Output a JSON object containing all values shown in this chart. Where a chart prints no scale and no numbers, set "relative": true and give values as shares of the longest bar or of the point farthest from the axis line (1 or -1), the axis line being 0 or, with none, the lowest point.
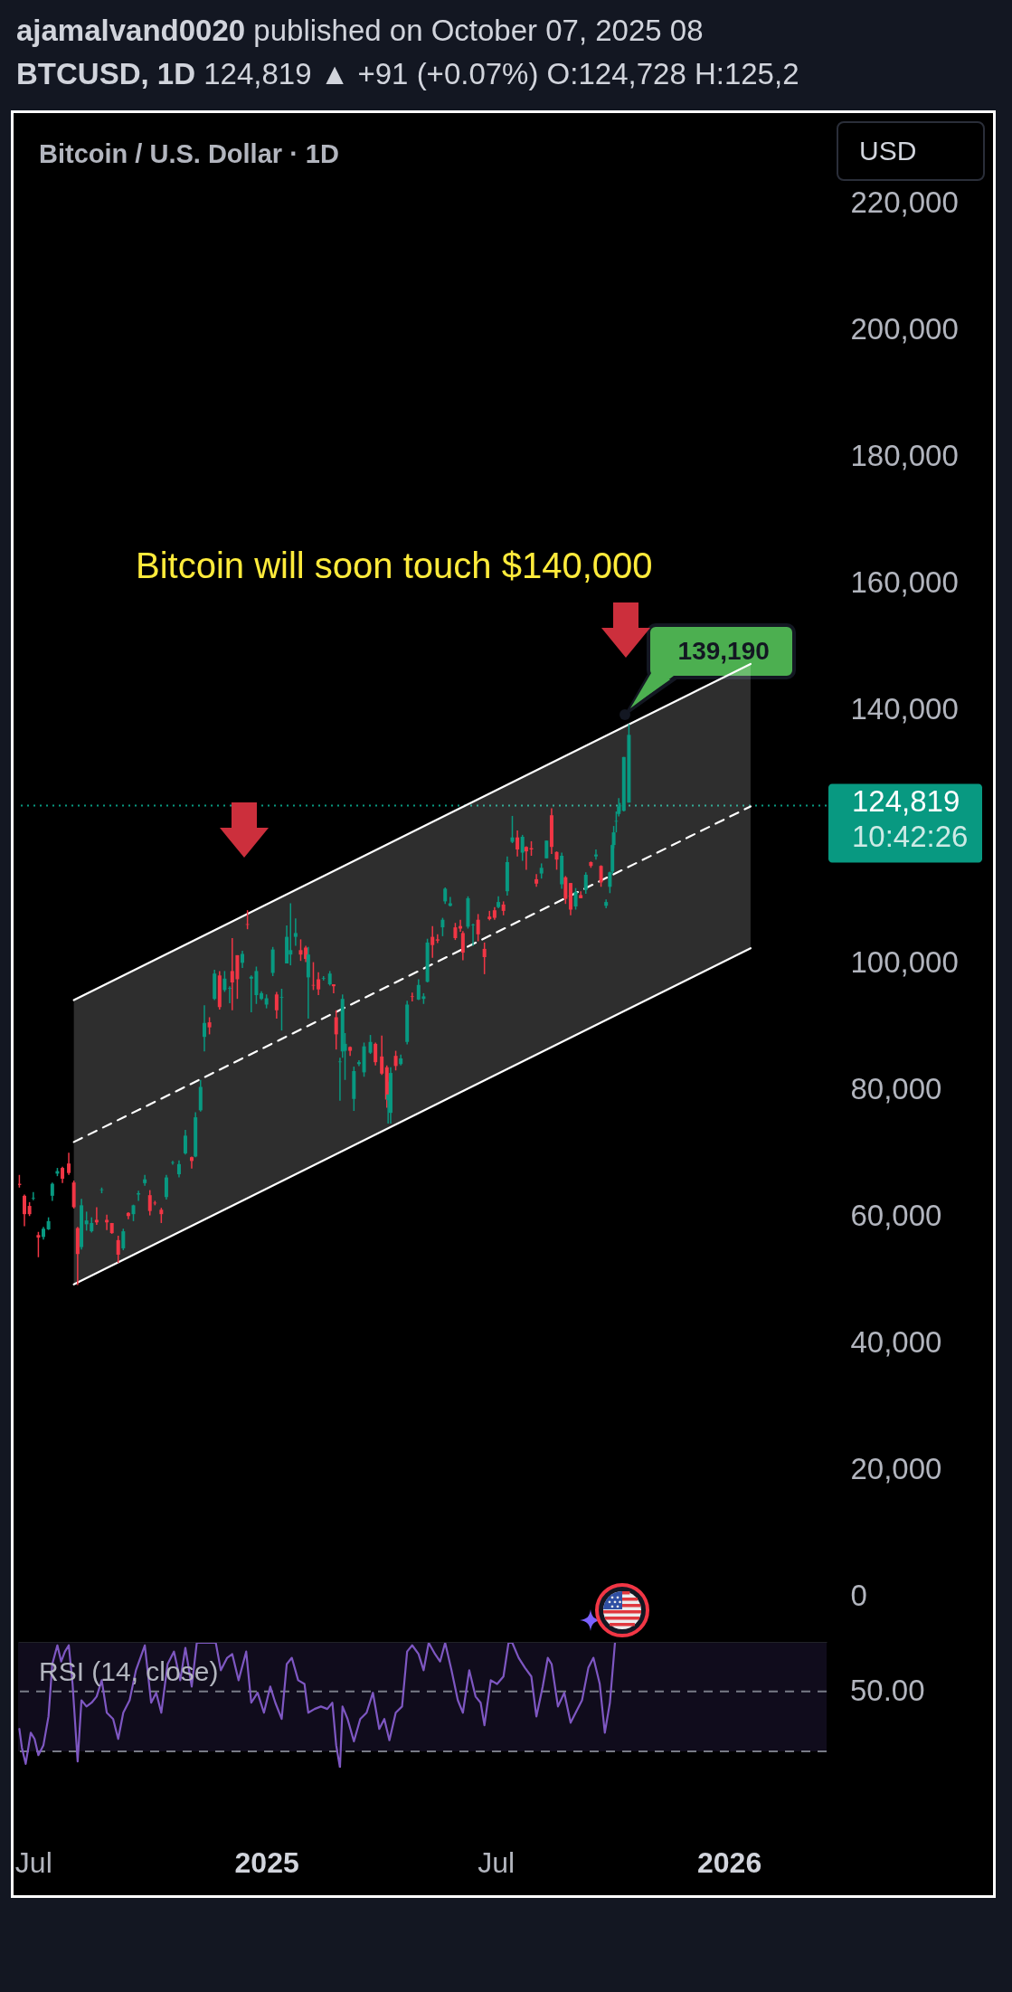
{
  "chart_data": [
    {
      "type": "candlestick",
      "title": "Bitcoin / U.S. Dollar · 1D",
      "subtitle": "BTCUSD, 1D 124,819 ▲ +91 (+0.07%) O:124,728 H:125,2",
      "ylabel": "USD",
      "annotations": [
        "ajamalvand0020 published on October 07, 2025 08",
        "Bitcoin will soon touch $140,000",
        {
          "text": "139,190",
          "x": "2025-10-11",
          "y": 139190
        },
        "10:42:26"
      ],
      "x": [
        "2024-06-20",
        "2024-06-24",
        "2024-06-28",
        "2024-07-01",
        "2024-07-05",
        "2024-07-09",
        "2024-07-13",
        "2024-07-16",
        "2024-07-20",
        "2024-07-24",
        "2024-07-29",
        "2024-08-02",
        "2024-08-05",
        "2024-08-08",
        "2024-08-12",
        "2024-08-16",
        "2024-08-20",
        "2024-08-24",
        "2024-08-28",
        "2024-09-01",
        "2024-09-06",
        "2024-09-10",
        "2024-09-14",
        "2024-09-18",
        "2024-09-22",
        "2024-09-27",
        "2024-10-01",
        "2024-10-05",
        "2024-10-10",
        "2024-10-14",
        "2024-10-19",
        "2024-10-24",
        "2024-10-29",
        "2024-11-03",
        "2024-11-06",
        "2024-11-10",
        "2024-11-13",
        "2024-11-17",
        "2024-11-21",
        "2024-11-25",
        "2024-11-29",
        "2024-12-03",
        "2024-12-05",
        "2024-12-09",
        "2024-12-13",
        "2024-12-17",
        "2024-12-20",
        "2024-12-24",
        "2024-12-28",
        "2025-01-01",
        "2025-01-06",
        "2025-01-09",
        "2025-01-13",
        "2025-01-17",
        "2025-01-20",
        "2025-01-24",
        "2025-01-28",
        "2025-02-01",
        "2025-02-03",
        "2025-02-07",
        "2025-02-11",
        "2025-02-15",
        "2025-02-20",
        "2025-02-23",
        "2025-02-25",
        "2025-02-28",
        "2025-03-02",
        "2025-03-04",
        "2025-03-08",
        "2025-03-11",
        "2025-03-15",
        "2025-03-19",
        "2025-03-24",
        "2025-03-28",
        "2025-04-02",
        "2025-04-06",
        "2025-04-07",
        "2025-04-09",
        "2025-04-13",
        "2025-04-17",
        "2025-04-22",
        "2025-04-26",
        "2025-05-01",
        "2025-05-05",
        "2025-05-08",
        "2025-05-12",
        "2025-05-16",
        "2025-05-20",
        "2025-05-22",
        "2025-05-26",
        "2025-05-30",
        "2025-06-03",
        "2025-06-05",
        "2025-06-09",
        "2025-06-13",
        "2025-06-17",
        "2025-06-22",
        "2025-06-26",
        "2025-06-30",
        "2025-07-03",
        "2025-07-07",
        "2025-07-10",
        "2025-07-14",
        "2025-07-18",
        "2025-07-22",
        "2025-07-25",
        "2025-07-29",
        "2025-08-02",
        "2025-08-06",
        "2025-08-10",
        "2025-08-14",
        "2025-08-18",
        "2025-08-22",
        "2025-08-25",
        "2025-08-29",
        "2025-09-02",
        "2025-09-06",
        "2025-09-10",
        "2025-09-14",
        "2025-09-18",
        "2025-09-22",
        "2025-09-26",
        "2025-09-29",
        "2025-10-01",
        "2025-10-02",
        "2025-10-04",
        "2025-10-06",
        "2025-10-07",
        "2025-10-10",
        "2025-10-14"
      ],
      "ohlc": [
        [
          65100,
          66500,
          64500,
          64900
        ],
        [
          63200,
          63400,
          58400,
          60300
        ],
        [
          61600,
          62200,
          60000,
          60300
        ],
        [
          62800,
          63800,
          62500,
          62900
        ],
        [
          57000,
          57500,
          53500,
          56600
        ],
        [
          56700,
          58300,
          56300,
          58000
        ],
        [
          57900,
          59800,
          57800,
          59200
        ],
        [
          63200,
          65300,
          62400,
          65100
        ],
        [
          66700,
          67600,
          66300,
          67100
        ],
        [
          67600,
          67800,
          65200,
          65900
        ],
        [
          68300,
          70000,
          66500,
          66800
        ],
        [
          65300,
          65600,
          61200,
          61400
        ],
        [
          58100,
          58300,
          49100,
          54000
        ],
        [
          55100,
          62700,
          54700,
          61700
        ],
        [
          58700,
          60700,
          57700,
          59300
        ],
        [
          57600,
          59800,
          57400,
          58900
        ],
        [
          59400,
          61400,
          58600,
          59000
        ],
        [
          64100,
          64500,
          63600,
          64200
        ],
        [
          59400,
          60200,
          57800,
          59000
        ],
        [
          58900,
          58900,
          57200,
          57300
        ],
        [
          56200,
          56900,
          52600,
          53900
        ],
        [
          54900,
          58000,
          54600,
          57600
        ],
        [
          60500,
          60600,
          59500,
          60000
        ],
        [
          60300,
          61800,
          59200,
          61700
        ],
        [
          63400,
          64000,
          62400,
          63600
        ],
        [
          65200,
          66500,
          64800,
          65800
        ],
        [
          63300,
          64100,
          60100,
          60800
        ],
        [
          62100,
          62400,
          61700,
          62000
        ],
        [
          61000,
          61300,
          58900,
          60300
        ],
        [
          63000,
          66500,
          62600,
          66100
        ],
        [
          68400,
          68700,
          68100,
          68500
        ],
        [
          66600,
          68800,
          66100,
          68200
        ],
        [
          69900,
          73600,
          69700,
          72700
        ],
        [
          69300,
          69400,
          67500,
          68700
        ],
        [
          69400,
          76400,
          69300,
          75600
        ],
        [
          76700,
          81500,
          76500,
          80400
        ],
        [
          88300,
          93300,
          86000,
          90500
        ],
        [
          90600,
          91400,
          88700,
          89800
        ],
        [
          94300,
          98900,
          94100,
          98300
        ],
        [
          98000,
          98700,
          92600,
          93000
        ],
        [
          95700,
          98700,
          95400,
          97500
        ],
        [
          95900,
          96300,
          93600,
          96000
        ],
        [
          98700,
          103900,
          92500,
          96900
        ],
        [
          101200,
          101200,
          94300,
          97400
        ],
        [
          100000,
          101900,
          99200,
          101400
        ],
        [
          106100,
          108300,
          105300,
          106000
        ],
        [
          97500,
          98000,
          92200,
          97800
        ],
        [
          94900,
          99400,
          93500,
          98700
        ],
        [
          94300,
          95500,
          94100,
          95200
        ],
        [
          93400,
          95000,
          92800,
          94400
        ],
        [
          98400,
          102500,
          97900,
          102100
        ],
        [
          95000,
          95400,
          91200,
          92500
        ],
        [
          94500,
          95900,
          89300,
          94600
        ],
        [
          99900,
          105900,
          99900,
          104100
        ],
        [
          101300,
          109400,
          99600,
          102000
        ],
        [
          104100,
          107000,
          102700,
          104700
        ],
        [
          102000,
          103700,
          100300,
          101300
        ],
        [
          102400,
          102700,
          100100,
          100600
        ],
        [
          97700,
          102500,
          91200,
          101300
        ],
        [
          96500,
          100100,
          95700,
          96400
        ],
        [
          97400,
          98500,
          94900,
          95800
        ],
        [
          97500,
          97900,
          97200,
          97600
        ],
        [
          96600,
          98700,
          96400,
          98300
        ],
        [
          96600,
          96600,
          95200,
          96300
        ],
        [
          91400,
          92500,
          86300,
          88700
        ],
        [
          84300,
          85000,
          78200,
          84400
        ],
        [
          86000,
          95000,
          85000,
          94300
        ],
        [
          86100,
          88900,
          81500,
          87200
        ],
        [
          86700,
          86800,
          85300,
          86100
        ],
        [
          78500,
          83600,
          76600,
          82900
        ],
        [
          84000,
          84600,
          83700,
          84300
        ],
        [
          82700,
          87400,
          82000,
          86800
        ],
        [
          85800,
          88600,
          85600,
          87500
        ],
        [
          87200,
          87400,
          83800,
          84300
        ],
        [
          85200,
          88500,
          82300,
          82500
        ],
        [
          83500,
          83800,
          77100,
          78400
        ],
        [
          78300,
          81200,
          74600,
          79200
        ],
        [
          76300,
          83500,
          74600,
          82600
        ],
        [
          85300,
          86100,
          83000,
          83700
        ],
        [
          84000,
          85500,
          83800,
          84900
        ],
        [
          87500,
          94000,
          87100,
          93400
        ],
        [
          94700,
          95300,
          93900,
          94600
        ],
        [
          94200,
          97400,
          94100,
          96500
        ],
        [
          94300,
          95200,
          93500,
          94700
        ],
        [
          97000,
          103800,
          96900,
          103200
        ],
        [
          104100,
          105800,
          100800,
          102800
        ],
        [
          103700,
          104500,
          103100,
          103500
        ],
        [
          105600,
          107100,
          104200,
          106800
        ],
        [
          109700,
          111900,
          109300,
          111700
        ],
        [
          109000,
          110400,
          108900,
          109400
        ],
        [
          105600,
          106300,
          103600,
          103900
        ],
        [
          105800,
          106800,
          104900,
          105400
        ],
        [
          104700,
          105000,
          100400,
          101600
        ],
        [
          105700,
          110500,
          105400,
          110200
        ],
        [
          105900,
          106200,
          102700,
          106000
        ],
        [
          106800,
          107700,
          103400,
          104500
        ],
        [
          102200,
          103200,
          98200,
          100900
        ],
        [
          107300,
          108200,
          106700,
          106900
        ],
        [
          108300,
          108800,
          106800,
          107100
        ],
        [
          108800,
          110500,
          108600,
          109600
        ],
        [
          109200,
          109700,
          107500,
          108200
        ],
        [
          111300,
          116800,
          110600,
          115900
        ],
        [
          119100,
          123200,
          118900,
          119800
        ],
        [
          119800,
          120900,
          116800,
          117900
        ],
        [
          117400,
          120200,
          116100,
          119900
        ],
        [
          118300,
          118400,
          114700,
          117600
        ],
        [
          118100,
          119200,
          116900,
          117900
        ],
        [
          113200,
          114000,
          112000,
          112500
        ],
        [
          114100,
          115700,
          113300,
          115000
        ],
        [
          116500,
          119300,
          116500,
          119300
        ],
        [
          123300,
          124400,
          117200,
          118300
        ],
        [
          117500,
          117600,
          114700,
          116300
        ],
        [
          112400,
          117400,
          111700,
          116900
        ],
        [
          113500,
          113700,
          109300,
          110100
        ],
        [
          112600,
          112600,
          107500,
          108400
        ],
        [
          108900,
          111800,
          108400,
          111200
        ],
        [
          110700,
          111300,
          110200,
          110200
        ],
        [
          111500,
          114300,
          110900,
          113900
        ],
        [
          115900,
          116000,
          115000,
          115300
        ],
        [
          116800,
          117900,
          116300,
          117100
        ],
        [
          115300,
          115400,
          112000,
          112700
        ],
        [
          109000,
          110000,
          108600,
          109600
        ],
        [
          112000,
          114400,
          111000,
          114300
        ],
        [
          114400,
          118700,
          114000,
          118600
        ],
        [
          118600,
          121600,
          118100,
          120600
        ],
        [
          122300,
          123900,
          120600,
          122400
        ],
        [
          123500,
          126000,
          123100,
          124700
        ],
        [
          124728,
          125250,
          123900,
          124819
        ],
        [
          124000,
          132500,
          123900,
          132500
        ],
        [
          125300,
          137700,
          125300,
          136000
        ]
      ],
      "colors": [
        "#f23645",
        "#f23645",
        "#f23645",
        "#089981",
        "#f23645",
        "#089981",
        "#089981",
        "#089981",
        "#089981",
        "#f23645",
        "#f23645",
        "#f23645",
        "#f23645",
        "#089981",
        "#089981",
        "#089981",
        "#f23645",
        "#089981",
        "#f23645",
        "#f23645",
        "#f23645",
        "#089981",
        "#f23645",
        "#089981",
        "#089981",
        "#089981",
        "#f23645",
        "#f23645",
        "#f23645",
        "#089981",
        "#089981",
        "#089981",
        "#089981",
        "#f23645",
        "#089981",
        "#089981",
        "#089981",
        "#f23645",
        "#089981",
        "#f23645",
        "#089981",
        "#089981",
        "#f23645",
        "#f23645",
        "#089981",
        "#f23645",
        "#089981",
        "#089981",
        "#089981",
        "#089981",
        "#089981",
        "#f23645",
        "#089981",
        "#089981",
        "#089981",
        "#089981",
        "#f23645",
        "#f23645",
        "#089981",
        "#f23645",
        "#f23645",
        "#089981",
        "#089981",
        "#f23645",
        "#f23645",
        "#089981",
        "#089981",
        "#089981",
        "#f23645",
        "#089981",
        "#089981",
        "#089981",
        "#089981",
        "#f23645",
        "#f23645",
        "#f23645",
        "#089981",
        "#089981",
        "#f23645",
        "#089981",
        "#089981",
        "#f23645",
        "#089981",
        "#089981",
        "#089981",
        "#f23645",
        "#f23645",
        "#089981",
        "#089981",
        "#089981",
        "#f23645",
        "#f23645",
        "#f23645",
        "#089981",
        "#089981",
        "#f23645",
        "#f23645",
        "#f23645",
        "#f23645",
        "#089981",
        "#f23645",
        "#089981",
        "#089981",
        "#f23645",
        "#089981",
        "#f23645",
        "#f23645",
        "#f23645",
        "#089981",
        "#089981",
        "#f23645",
        "#f23645",
        "#089981",
        "#f23645",
        "#f23645",
        "#089981",
        "#f23645",
        "#089981",
        "#f23645",
        "#089981",
        "#f23645",
        "#089981",
        "#089981",
        "#089981",
        "#089981",
        "#089981",
        "#089981",
        "#089981",
        "#089981",
        "#089981"
      ],
      "series": [
        {
          "type": "line",
          "x": [
            "2024-08-02",
            "2026-01-18"
          ],
          "values": [
            94100,
            147200
          ],
          "color": "#ffffff",
          "line_style": "solid"
        },
        {
          "type": "line",
          "x": [
            "2024-08-02",
            "2026-01-18"
          ],
          "values": [
            71700,
            124700
          ],
          "lower": [
            49200,
            102300
          ],
          "upper": [
            94100,
            147200
          ],
          "color": "#ffffff",
          "line_style": "dashed"
        },
        {
          "type": "line",
          "x": [
            "2024-08-02",
            "2026-01-18"
          ],
          "values": [
            49200,
            102300
          ],
          "color": "#ffffff",
          "line_style": "solid"
        }
      ],
      "xlim": [
        "2024-06-19",
        "2026-03-19"
      ],
      "ylim": [
        -7400,
        234200
      ],
      "yticks": [
        {
          "value": 0,
          "label": "0"
        },
        {
          "value": 20000,
          "label": "20,000"
        },
        {
          "value": 40000,
          "label": "40,000"
        },
        {
          "value": 60000,
          "label": "60,000"
        },
        {
          "value": 80000,
          "label": "80,000"
        },
        {
          "value": 100000,
          "label": "100,000"
        },
        {
          "value": 140000,
          "label": "140,000"
        },
        {
          "value": 160000,
          "label": "160,000"
        },
        {
          "value": 180000,
          "label": "180,000"
        },
        {
          "value": 200000,
          "label": "200,000"
        },
        {
          "value": 220000,
          "label": "220,000"
        }
      ],
      "tick_labels": "y",
      "ref_lines": [
        {
          "axis": "y",
          "value": 124819,
          "label": "124,819",
          "color": "#089981",
          "line_style": "dotted"
        }
      ]
    },
    {
      "type": "line",
      "title": "RSI (14, close)",
      "relative": true,
      "color": "#7e57c2",
      "annotations": [
        "50.00"
      ],
      "x": [
        "2024-06-20",
        "2024-06-22",
        "2024-06-25",
        "2024-06-29",
        "2024-07-02",
        "2024-07-05",
        "2024-07-09",
        "2024-07-13",
        "2024-07-16",
        "2024-07-20",
        "2024-07-23",
        "2024-07-26",
        "2024-07-29",
        "2024-08-01",
        "2024-08-05",
        "2024-08-08",
        "2024-08-12",
        "2024-08-16",
        "2024-08-20",
        "2024-08-24",
        "2024-08-28",
        "2024-09-02",
        "2024-09-06",
        "2024-09-10",
        "2024-09-15",
        "2024-09-20",
        "2024-09-27",
        "2024-10-02",
        "2024-10-06",
        "2024-10-10",
        "2024-10-15",
        "2024-10-20",
        "2024-10-25",
        "2024-10-29",
        "2024-11-03",
        "2024-11-07",
        "2024-11-12",
        "2024-11-17",
        "2024-11-22",
        "2024-11-26",
        "2024-12-01",
        "2024-12-05",
        "2024-12-10",
        "2024-12-16",
        "2024-12-20",
        "2024-12-25",
        "2024-12-30",
        "2025-01-04",
        "2025-01-08",
        "2025-01-13",
        "2025-01-17",
        "2025-01-21",
        "2025-01-26",
        "2025-01-31",
        "2025-02-03",
        "2025-02-08",
        "2025-02-13",
        "2025-02-18",
        "2025-02-22",
        "2025-02-25",
        "2025-02-28",
        "2025-03-02",
        "2025-03-06",
        "2025-03-11",
        "2025-03-16",
        "2025-03-21",
        "2025-03-26",
        "2025-03-31",
        "2025-04-04",
        "2025-04-08",
        "2025-04-13",
        "2025-04-18",
        "2025-04-22",
        "2025-04-26",
        "2025-05-01",
        "2025-05-05",
        "2025-05-09",
        "2025-05-14",
        "2025-05-18",
        "2025-05-22",
        "2025-05-27",
        "2025-06-01",
        "2025-06-05",
        "2025-06-10",
        "2025-06-15",
        "2025-06-19",
        "2025-06-22",
        "2025-06-27",
        "2025-07-02",
        "2025-07-07",
        "2025-07-11",
        "2025-07-14",
        "2025-07-19",
        "2025-07-24",
        "2025-07-29",
        "2025-08-02",
        "2025-08-07",
        "2025-08-11",
        "2025-08-14",
        "2025-08-19",
        "2025-08-24",
        "2025-08-29",
        "2025-09-02",
        "2025-09-07",
        "2025-09-12",
        "2025-09-16",
        "2025-09-21",
        "2025-09-25",
        "2025-09-29",
        "2025-10-03"
      ],
      "values": [
        0.31,
        0.16,
        0.03,
        0.28,
        0.23,
        0.1,
        0.18,
        0.41,
        0.83,
        0.98,
        0.85,
        0.93,
        0.98,
        0.67,
        0.05,
        0.54,
        0.49,
        0.52,
        0.57,
        0.7,
        0.44,
        0.39,
        0.23,
        0.44,
        0.54,
        0.78,
        0.98,
        0.52,
        0.6,
        0.44,
        0.83,
        0.93,
        0.7,
        0.96,
        0.65,
        1,
        1,
        1,
        1,
        0.78,
        0.88,
        0.91,
        0.7,
        0.93,
        0.52,
        0.6,
        0.44,
        0.65,
        0.52,
        0.39,
        0.83,
        0.88,
        0.7,
        0.67,
        0.44,
        0.47,
        0.49,
        0.47,
        0.52,
        0.18,
        0,
        0.49,
        0.39,
        0.21,
        0.39,
        0.44,
        0.6,
        0.31,
        0.39,
        0.22,
        0.44,
        0.49,
        0.93,
        0.98,
        0.91,
        0.78,
        1,
        0.91,
        0.85,
        1,
        0.78,
        0.54,
        0.44,
        0.78,
        0.57,
        0.52,
        0.34,
        0.7,
        0.67,
        0.73,
        1,
        1,
        0.88,
        0.8,
        0.73,
        0.41,
        0.65,
        0.88,
        0.83,
        0.49,
        0.6,
        0.36,
        0.44,
        0.54,
        0.8,
        0.88,
        0.67,
        0.28,
        0.52,
        1
      ],
      "xlim": [
        "2024-06-19",
        "2026-03-19"
      ],
      "xticks": [
        {
          "value": "2024-07-01",
          "label": "Jul"
        },
        {
          "value": "2025-01-01",
          "label": "2025"
        },
        {
          "value": "2025-07-01",
          "label": "Jul"
        },
        {
          "value": "2026-01-01",
          "label": "2026"
        }
      ],
      "ref_lines": [
        {
          "axis": "y",
          "value": 0.61,
          "color": "#787b86",
          "line_style": "dashed"
        },
        {
          "axis": "y",
          "value": 0.13,
          "color": "#787b86",
          "line_style": "dashed"
        }
      ],
      "bands": [
        {
          "axis": "y",
          "from": 0.13,
          "to": 1,
          "color": "#100c1c"
        }
      ]
    }
  ]
}
